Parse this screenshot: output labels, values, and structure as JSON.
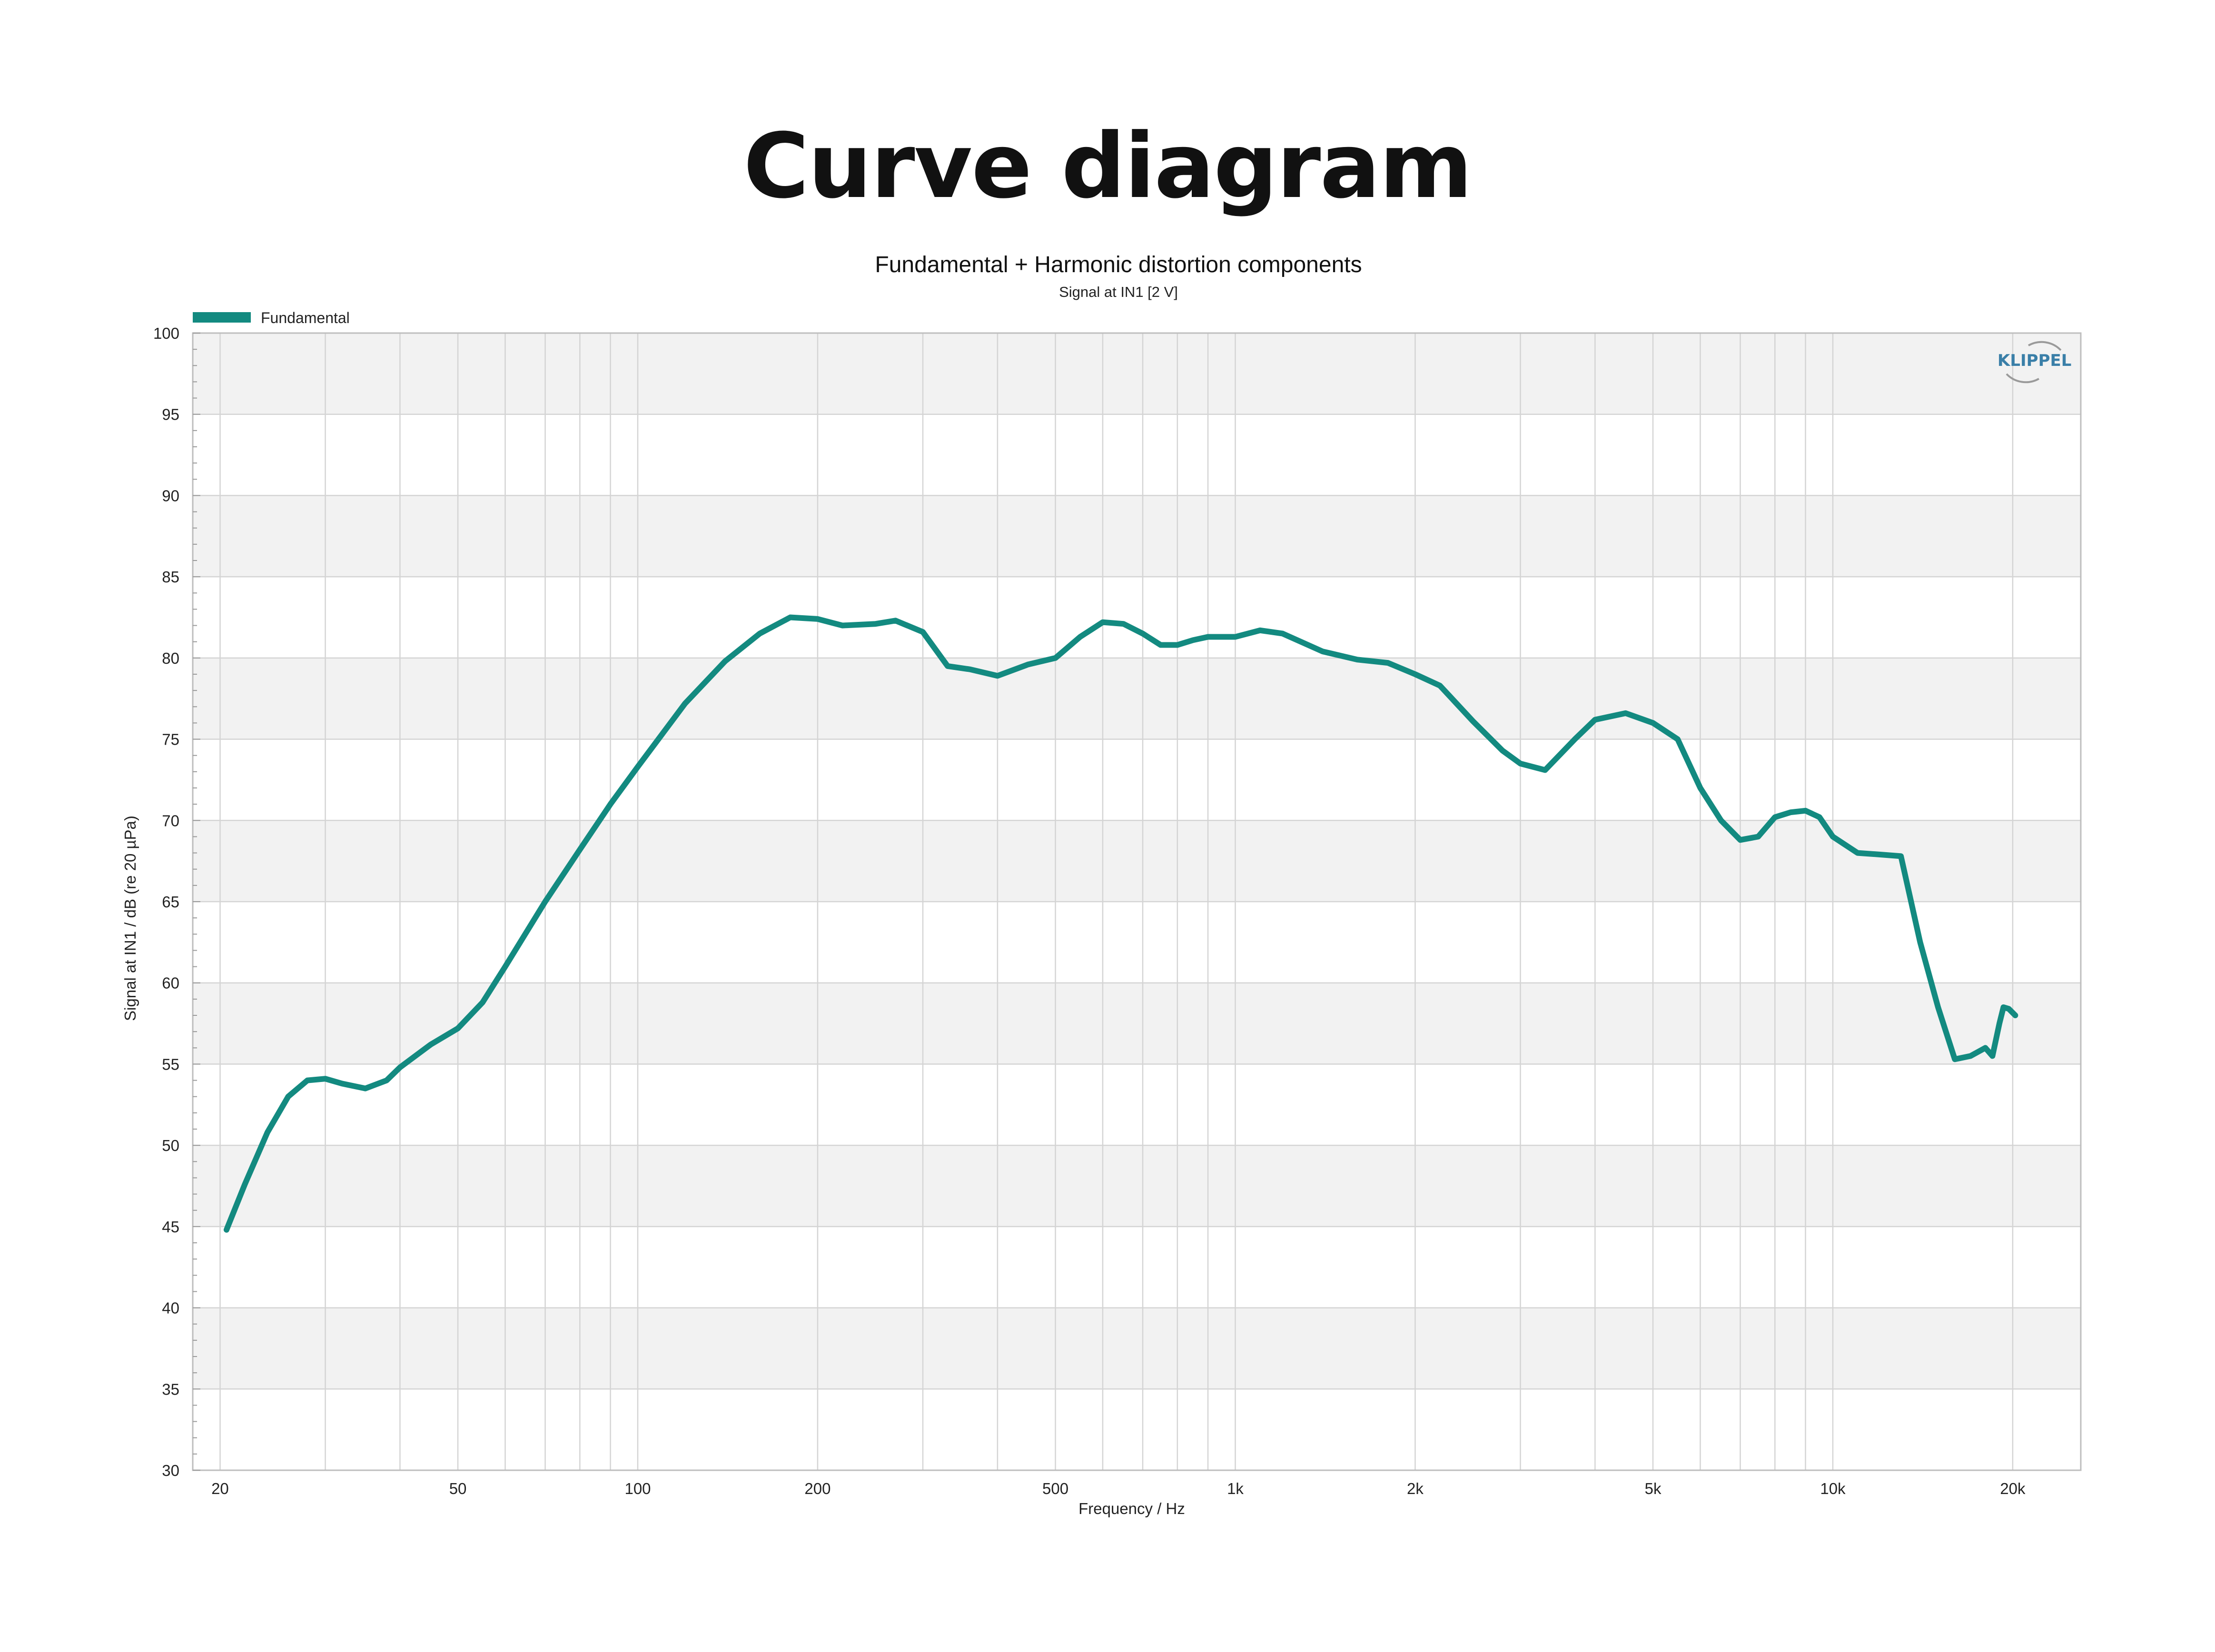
{
  "page": {
    "heading": "Curve diagram"
  },
  "logo": {
    "text": "KLIPPEL"
  },
  "colors": {
    "series": "#138a80",
    "band": "#f2f2f2",
    "grid": "#d4d4d4"
  },
  "chart_data": {
    "type": "line",
    "title": "Fundamental + Harmonic distortion components",
    "subtitle": "Signal at IN1 [2 V]",
    "xlabel": "Frequency / Hz",
    "ylabel": "Signal at IN1 / dB (re 20 µPa)",
    "xscale": "log",
    "xlim": [
      18,
      26000
    ],
    "ylim": [
      30,
      100
    ],
    "yticks": [
      30,
      35,
      40,
      45,
      50,
      55,
      60,
      65,
      70,
      75,
      80,
      85,
      90,
      95,
      100
    ],
    "xticks": [
      {
        "value": 20,
        "label": "20"
      },
      {
        "value": 50,
        "label": "50"
      },
      {
        "value": 100,
        "label": "100"
      },
      {
        "value": 200,
        "label": "200"
      },
      {
        "value": 500,
        "label": "500"
      },
      {
        "value": 1000,
        "label": "1k"
      },
      {
        "value": 2000,
        "label": "2k"
      },
      {
        "value": 5000,
        "label": "5k"
      },
      {
        "value": 10000,
        "label": "10k"
      },
      {
        "value": 20000,
        "label": "20k"
      }
    ],
    "grid": true,
    "legend_position": "top-left",
    "series": [
      {
        "name": "Fundamental",
        "color": "#138a80",
        "x": [
          20.5,
          22,
          24,
          26,
          28,
          30,
          32,
          35,
          38,
          40,
          45,
          50,
          55,
          60,
          70,
          80,
          90,
          100,
          120,
          140,
          160,
          180,
          200,
          220,
          250,
          270,
          300,
          330,
          360,
          400,
          450,
          500,
          550,
          600,
          650,
          700,
          750,
          800,
          850,
          900,
          1000,
          1100,
          1200,
          1400,
          1600,
          1800,
          2000,
          2200,
          2500,
          2800,
          3000,
          3300,
          3700,
          4000,
          4500,
          5000,
          5500,
          6000,
          6500,
          7000,
          7500,
          8000,
          8500,
          9000,
          9500,
          10000,
          11000,
          12000,
          13000,
          14000,
          15000,
          16000,
          17000,
          18000,
          18500,
          19000,
          19300,
          19700,
          20200
        ],
        "y": [
          44.8,
          47.6,
          50.8,
          53.0,
          54.0,
          54.1,
          53.8,
          53.5,
          54.0,
          54.8,
          56.2,
          57.2,
          58.8,
          61.0,
          65.0,
          68.2,
          71.0,
          73.3,
          77.2,
          79.8,
          81.5,
          82.5,
          82.4,
          82.0,
          82.1,
          82.3,
          81.6,
          79.5,
          79.3,
          78.9,
          79.6,
          80.0,
          81.3,
          82.2,
          82.1,
          81.5,
          80.8,
          80.8,
          81.1,
          81.3,
          81.3,
          81.7,
          81.5,
          80.4,
          79.9,
          79.7,
          79.0,
          78.3,
          76.1,
          74.3,
          73.5,
          73.1,
          75.0,
          76.2,
          76.6,
          76.0,
          75.0,
          72.0,
          70.0,
          68.8,
          69.0,
          70.2,
          70.5,
          70.6,
          70.2,
          69.0,
          68.0,
          67.9,
          67.8,
          62.5,
          58.5,
          55.3,
          55.5,
          56.0,
          55.5,
          57.5,
          58.5,
          58.4,
          58.0
        ]
      }
    ]
  }
}
